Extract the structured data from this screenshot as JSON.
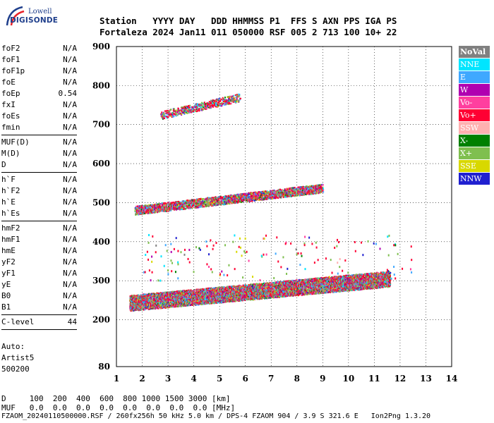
{
  "logo": {
    "line1": "Lowell",
    "line2": "DIGISONDE"
  },
  "header": {
    "row1": "Station   YYYY DAY   DDD HHMMSS P1  FFS S AXN PPS IGA PS",
    "row2": "Fortaleza 2024 Jan11 011 050000 RSF 005 2 713 100 10+ 22"
  },
  "params_group1": [
    {
      "name": "foF2",
      "value": "N/A"
    },
    {
      "name": "foF1",
      "value": "N/A"
    },
    {
      "name": "foF1p",
      "value": "N/A"
    },
    {
      "name": "foE",
      "value": "N/A"
    },
    {
      "name": "foEp",
      "value": "0.54"
    },
    {
      "name": "fxI",
      "value": "N/A"
    },
    {
      "name": "foEs",
      "value": "N/A"
    },
    {
      "name": "fmin",
      "value": "N/A"
    }
  ],
  "params_group2": [
    {
      "name": "MUF(D)",
      "value": "N/A"
    },
    {
      "name": "M(D)",
      "value": "N/A"
    },
    {
      "name": "D",
      "value": "N/A"
    }
  ],
  "params_group3": [
    {
      "name": "h`F",
      "value": "N/A"
    },
    {
      "name": "h`F2",
      "value": "N/A"
    },
    {
      "name": "h`E",
      "value": "N/A"
    },
    {
      "name": "h`Es",
      "value": "N/A"
    }
  ],
  "params_group4": [
    {
      "name": "hmF2",
      "value": "N/A"
    },
    {
      "name": "hmF1",
      "value": "N/A"
    },
    {
      "name": "hmE",
      "value": "N/A"
    },
    {
      "name": "yF2",
      "value": "N/A"
    },
    {
      "name": "yF1",
      "value": "N/A"
    },
    {
      "name": "yE",
      "value": "N/A"
    },
    {
      "name": "B0",
      "value": "N/A"
    },
    {
      "name": "B1",
      "value": "N/A"
    }
  ],
  "params_group5": [
    {
      "name": "C-level",
      "value": "44"
    }
  ],
  "notes": {
    "auto": "Auto:",
    "artist": "Artist5",
    "code": "500200"
  },
  "legend": [
    {
      "label": "NoVal",
      "color": "#808080"
    },
    {
      "label": "NNE",
      "color": "#00e5ff"
    },
    {
      "label": "E",
      "color": "#3fa8ff"
    },
    {
      "label": "W",
      "color": "#b000b0"
    },
    {
      "label": "Vo-",
      "color": "#ff3f9f"
    },
    {
      "label": "Vo+",
      "color": "#ff0033"
    },
    {
      "label": "SSW",
      "color": "#ffb0b0"
    },
    {
      "label": "X-",
      "color": "#008000"
    },
    {
      "label": "X+",
      "color": "#7fbf4f"
    },
    {
      "label": "SSE",
      "color": "#d8d800"
    },
    {
      "label": "NNW",
      "color": "#2020d0"
    }
  ],
  "bottom": {
    "d_row": "D     100  200  400  600  800 1000 1500 3000 [km]",
    "muf_row": "MUF   0.0  0.0  0.0  0.0  0.0  0.0  0.0  0.0 [MHz]",
    "footer": "FZAOM_20240110500000.RSF / 260fx256h 50 kHz 5.0 km / DPS-4 FZAOM 904 / 3.9 S 321.6 E   Ion2Png 1.3.20"
  },
  "chart_data": {
    "type": "scatter",
    "xlim": [
      1,
      14
    ],
    "ylim": [
      80,
      900
    ],
    "xticks": [
      1,
      2,
      3,
      4,
      5,
      6,
      7,
      8,
      9,
      10,
      11,
      12,
      13,
      14
    ],
    "yticks": [
      80,
      200,
      300,
      400,
      500,
      600,
      700,
      800,
      900
    ],
    "grid": "dotted",
    "legend_position": "right",
    "traces": [
      {
        "name": "layer-low",
        "x_start": 1.5,
        "x_end": 11.6,
        "y_start": 238,
        "y_end": 300,
        "spread": 40,
        "density": 1.0
      },
      {
        "name": "layer-mid",
        "x_start": 1.7,
        "x_end": 9.0,
        "y_start": 478,
        "y_end": 535,
        "spread": 22,
        "density": 0.55
      },
      {
        "name": "layer-high",
        "x_start": 2.7,
        "x_end": 5.8,
        "y_start": 722,
        "y_end": 768,
        "spread": 20,
        "density": 0.35
      }
    ]
  }
}
